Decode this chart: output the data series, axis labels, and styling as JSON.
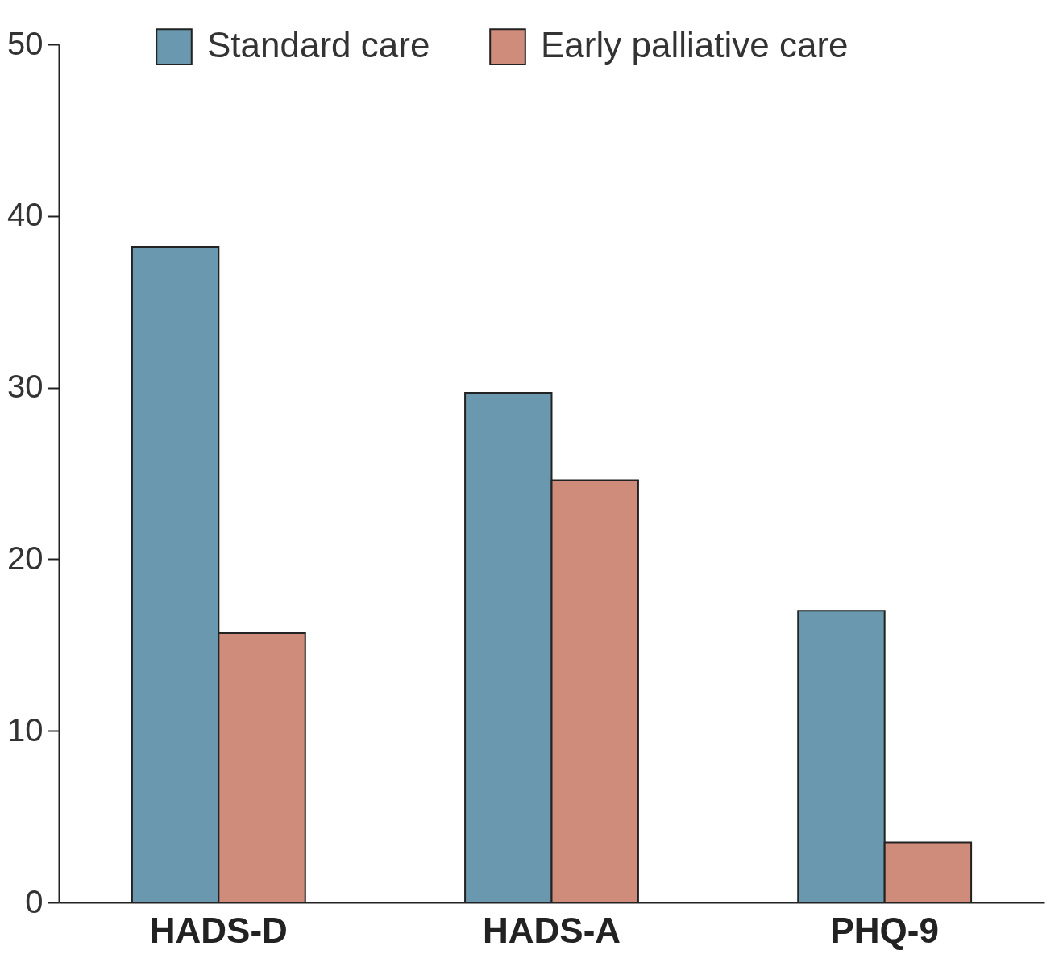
{
  "chart_data": {
    "type": "bar",
    "categories": [
      "HADS-D",
      "HADS-A",
      "PHQ-9"
    ],
    "series": [
      {
        "name": "Standard care",
        "color": "#6a98ae",
        "values": [
          38.2,
          29.7,
          17.0
        ]
      },
      {
        "name": "Early palliative care",
        "color": "#d08c7a",
        "values": [
          15.7,
          24.6,
          3.5
        ]
      }
    ],
    "ylim": [
      0,
      50
    ],
    "yticks": [
      0,
      10,
      20,
      30,
      40,
      50
    ],
    "grid": false,
    "legend": "top"
  }
}
